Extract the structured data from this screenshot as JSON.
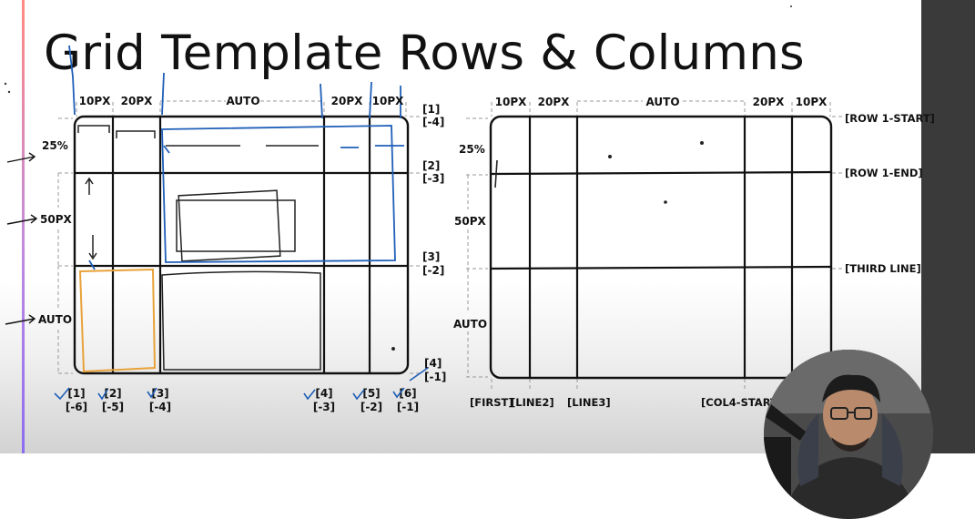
{
  "title": "Grid Template Rows & Columns",
  "left_grid": {
    "column_sizes": [
      "10PX",
      "20PX",
      "AUTO",
      "20PX",
      "10PX"
    ],
    "row_sizes": [
      "25%",
      "50PX",
      "AUTO"
    ],
    "row_line_labels": [
      [
        "[1]",
        "[-4]"
      ],
      [
        "[2]",
        "[-3]"
      ],
      [
        "[3]",
        "[-2]"
      ],
      [
        "[4]",
        "[-1]"
      ]
    ],
    "col_line_labels": [
      [
        "[1]",
        "[-6]"
      ],
      [
        "[2]",
        "[-5]"
      ],
      [
        "[3]",
        "[-4]"
      ],
      [
        "[4]",
        "[-3]"
      ],
      [
        "[5]",
        "[-2]"
      ],
      [
        "[6]",
        "[-1]"
      ]
    ]
  },
  "right_grid": {
    "column_sizes": [
      "10PX",
      "20PX",
      "AUTO",
      "20PX",
      "10PX"
    ],
    "row_sizes": [
      "25%",
      "50PX",
      "AUTO"
    ],
    "row_line_names": [
      "[ROW 1-START]",
      "[ROW 1-END]",
      "[THIRD LINE]"
    ],
    "col_line_names": [
      "[FIRST]",
      "[LINE2]",
      "[LINE3]",
      "[COL4-START]"
    ]
  },
  "colors": {
    "ink": "#111111",
    "blue_annotation": "#1f5fb8",
    "orange_highlight": "#e8a23a",
    "accent_stripe": "#c08be0"
  }
}
